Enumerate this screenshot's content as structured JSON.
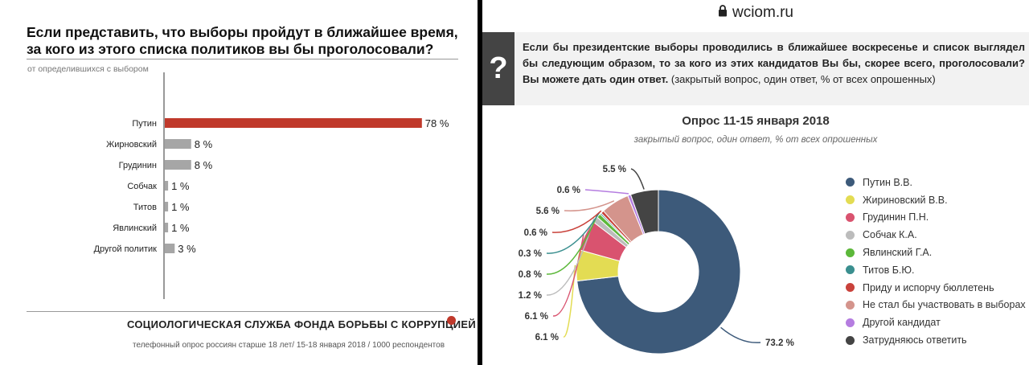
{
  "left": {
    "title": "Если представить, что выборы пройдут в ближайшее время, за кого из этого списка политиков вы бы проголосовали?",
    "subtitle": "от определившихся с выбором",
    "footer": "СОЦИОЛОГИЧЕСКАЯ СЛУЖБА ФОНДА БОРЬБЫ С КОРРУПЦИЕЙ",
    "note": "телефонный опрос россиян старше 18 лет/ 15-18 января 2018 / 1000 респондентов"
  },
  "right": {
    "url": "wciom.ru",
    "question_icon": "?",
    "question_bold": "Если бы президентские выборы проводились в ближайшее воскресенье и список выглядел бы следующим образом, то за кого из этих кандидатов Вы бы, скорее всего, проголосовали? Вы можете дать один ответ.",
    "question_rest": " (закрытый вопрос, один ответ, % от всех опрошенных)",
    "chart_title": "Опрос 11-15 января 2018",
    "chart_subtitle": "закрытый вопрос, один ответ, % от всех опрошенных"
  },
  "chart_data": [
    {
      "type": "bar",
      "orientation": "horizontal",
      "title": "Если представить, что выборы пройдут в ближайшее время, за кого из этого списка политиков вы бы проголосовали?",
      "subtitle": "от определившихся с выбором",
      "categories": [
        "Путин",
        "Жирновский",
        "Грудинин",
        "Собчак",
        "Титов",
        "Явлинский",
        "Другой политик"
      ],
      "values": [
        78,
        8,
        8,
        1,
        1,
        1,
        3
      ],
      "value_labels": [
        "78 %",
        "8 %",
        "8 %",
        "1 %",
        "1 %",
        "1 %",
        "3 %"
      ],
      "colors": [
        "#c0392b",
        "#a6a6a6",
        "#a6a6a6",
        "#a6a6a6",
        "#a6a6a6",
        "#a6a6a6",
        "#a6a6a6"
      ],
      "xlim": [
        0,
        100
      ]
    },
    {
      "type": "pie",
      "donut": true,
      "title": "Опрос 11-15 января 2018",
      "subtitle": "закрытый вопрос, один ответ, % от всех опрошенных",
      "legend_position": "right",
      "slices": [
        {
          "name": "Путин В.В.",
          "value": 73.2,
          "label": "73.2 %",
          "color": "#3d5a7a"
        },
        {
          "name": "Жириновский В.В.",
          "value": 6.1,
          "label": "6.1 %",
          "color": "#e3dc53"
        },
        {
          "name": "Грудинин П.Н.",
          "value": 6.1,
          "label": "6.1 %",
          "color": "#d9536f"
        },
        {
          "name": "Собчак К.А.",
          "value": 1.2,
          "label": "1.2 %",
          "color": "#bcbcbc"
        },
        {
          "name": "Явлинский Г.А.",
          "value": 0.8,
          "label": "0.8 %",
          "color": "#5cb83a"
        },
        {
          "name": "Титов Б.Ю.",
          "value": 0.3,
          "label": "0.3 %",
          "color": "#3a8f8f"
        },
        {
          "name": "Приду и испорчу бюллетень",
          "value": 0.6,
          "label": "0.6 %",
          "color": "#c9423b"
        },
        {
          "name": "Не стал бы участвовать в выборах",
          "value": 5.6,
          "label": "5.6 %",
          "color": "#d4948c"
        },
        {
          "name": "Другой кандидат",
          "value": 0.6,
          "label": "0.6 %",
          "color": "#b57de0"
        },
        {
          "name": "Затрудняюсь ответить",
          "value": 5.5,
          "label": "5.5 %",
          "color": "#444444"
        }
      ]
    }
  ]
}
